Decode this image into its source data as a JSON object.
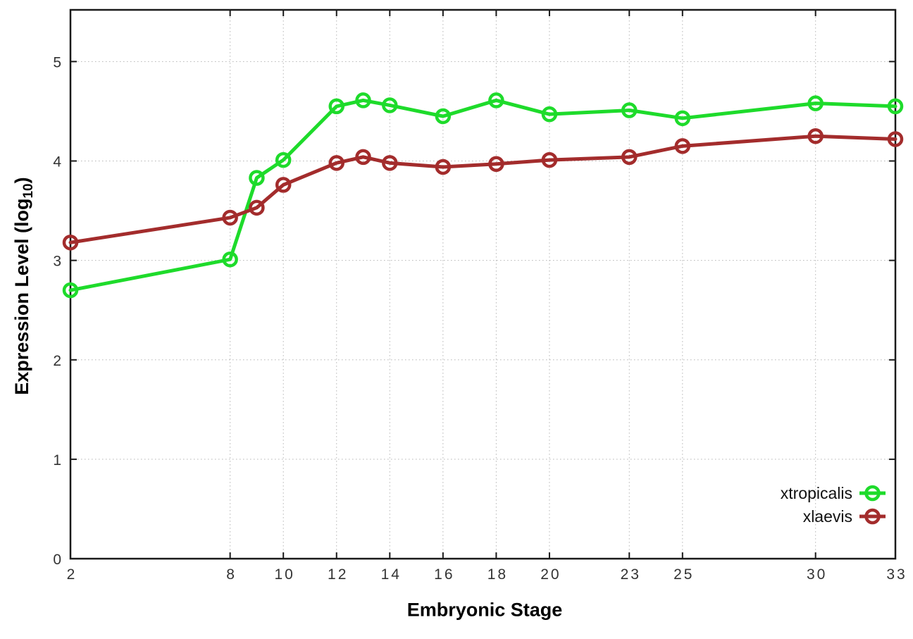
{
  "chart_data": {
    "type": "line",
    "title": "",
    "xlabel": "Embryonic Stage",
    "ylabel": {
      "text": "Expression Level (log",
      "sub": "10",
      "suffix": ")"
    },
    "x": [
      2,
      8,
      9,
      10,
      12,
      13,
      14,
      16,
      18,
      20,
      23,
      25,
      30,
      33
    ],
    "series": [
      {
        "name": "xtropicalis",
        "color": "#1edb2b",
        "values": [
          2.7,
          3.01,
          3.83,
          4.01,
          4.55,
          4.61,
          4.56,
          4.45,
          4.61,
          4.47,
          4.51,
          4.43,
          4.58,
          4.55
        ]
      },
      {
        "name": "xlaevis",
        "color": "#a32c2c",
        "values": [
          3.18,
          3.43,
          3.53,
          3.76,
          3.98,
          4.04,
          3.98,
          3.94,
          3.97,
          4.01,
          4.04,
          4.15,
          4.25,
          4.22
        ]
      }
    ],
    "xticks": [
      2,
      8,
      10,
      12,
      14,
      16,
      18,
      20,
      23,
      25,
      30,
      33
    ],
    "yticks": [
      0,
      1,
      2,
      3,
      4,
      5
    ],
    "xlim": [
      2,
      33
    ],
    "ylim": [
      0,
      5.52
    ],
    "grid": true,
    "legend_position": "inside-bottom-right",
    "marker": "open-circle",
    "line_width": 5
  },
  "style": {
    "background": "#ffffff",
    "axis_color": "#1a1a1a",
    "grid_color": "#b5b5b5",
    "tick_label_color": "#333333",
    "legend_text_color": "#111111"
  }
}
